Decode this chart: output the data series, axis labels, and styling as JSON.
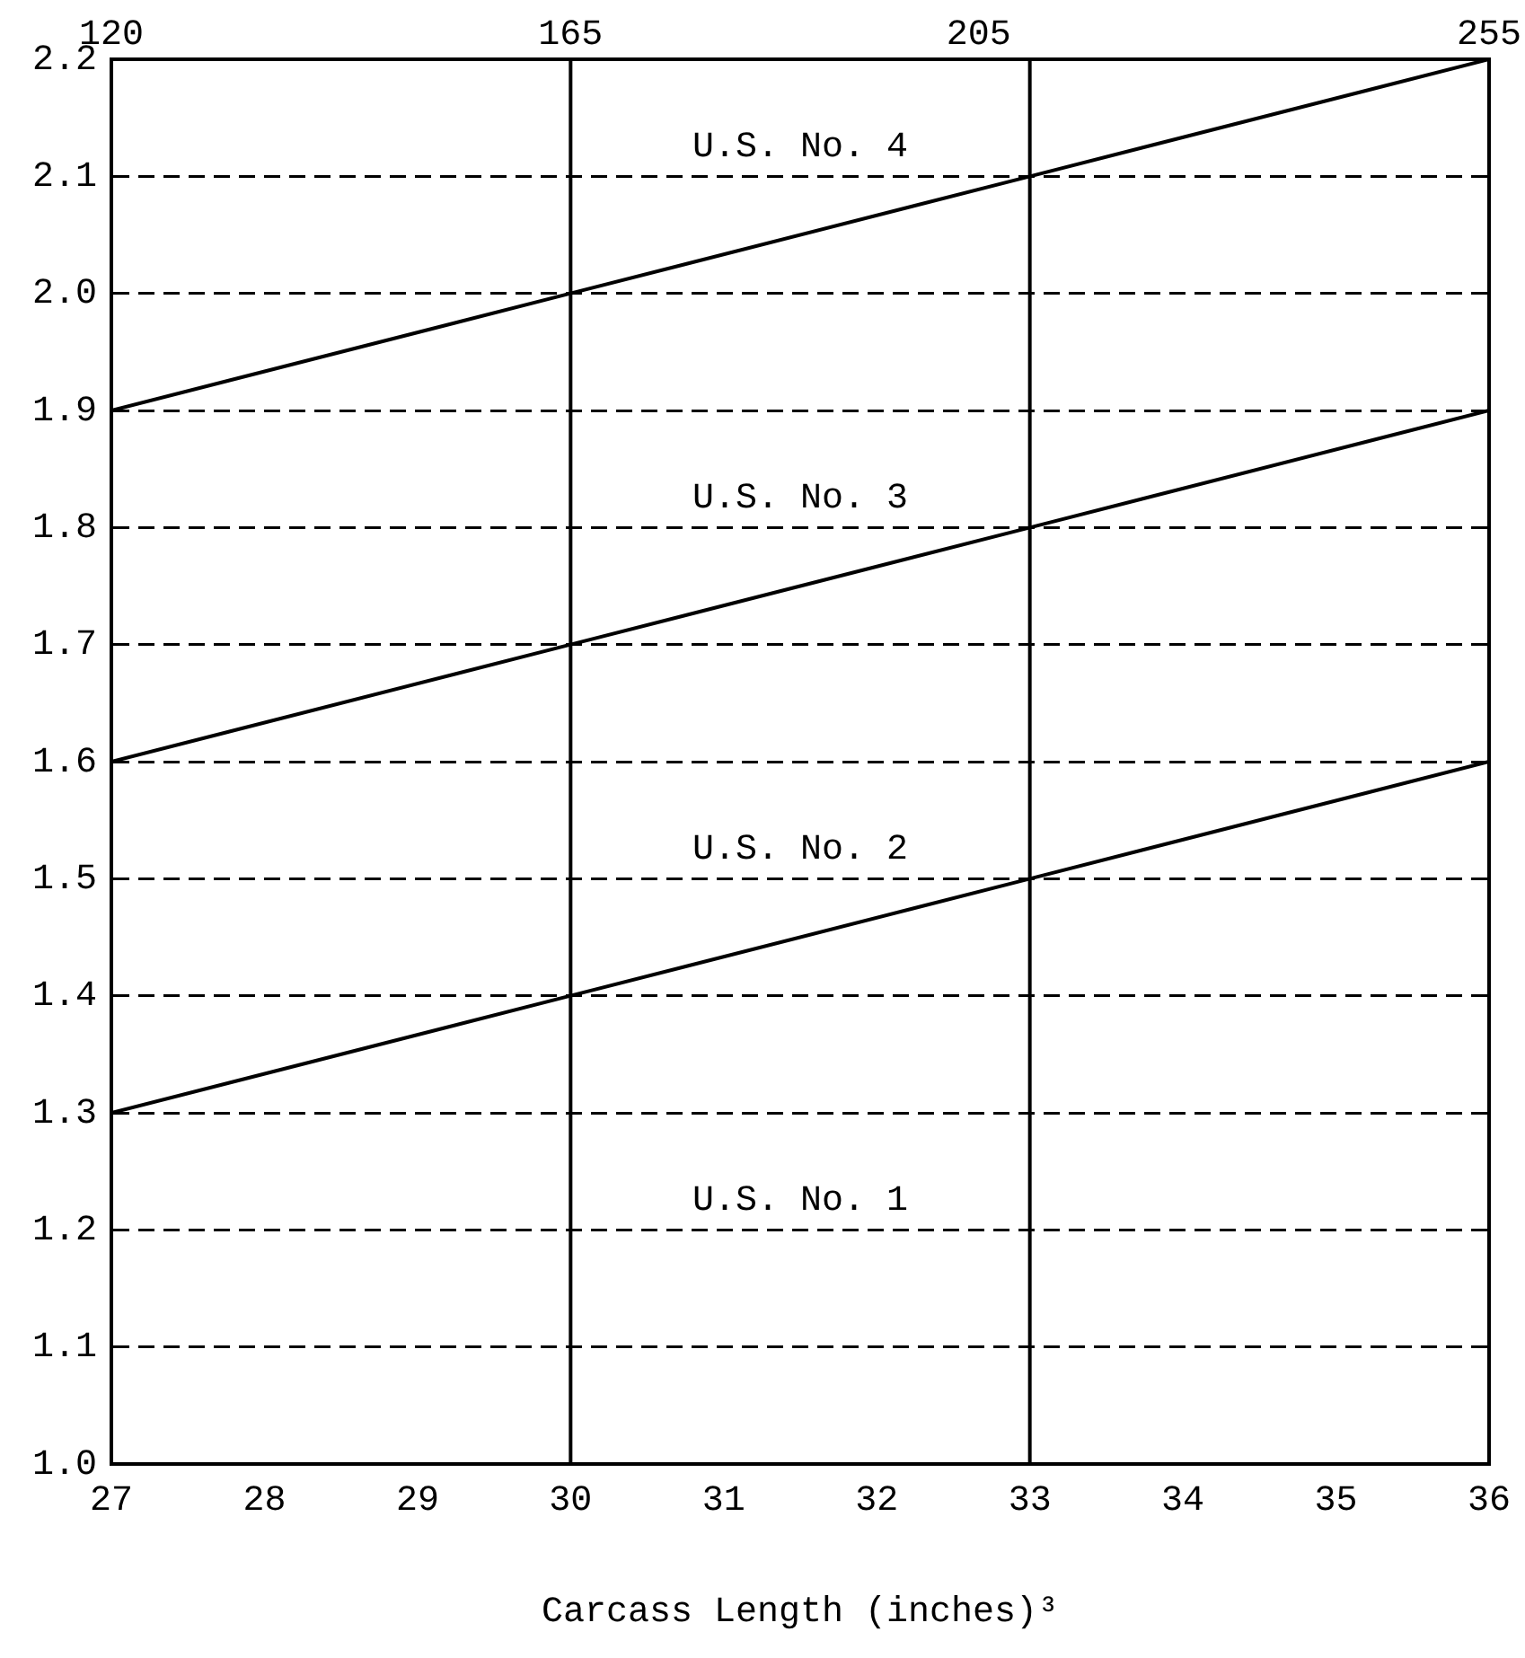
{
  "chart_data": {
    "type": "line",
    "xlabel": "Carcass Length (inches)³",
    "x": [
      27,
      30,
      33,
      36
    ],
    "series": [
      {
        "color": "#000000",
        "values": [
          1.3,
          1.4,
          1.5,
          1.6
        ]
      },
      {
        "color": "#000000",
        "values": [
          1.6,
          1.7,
          1.8,
          1.9
        ]
      },
      {
        "color": "#000000",
        "values": [
          1.9,
          2.0,
          2.1,
          2.2
        ]
      }
    ],
    "xlim": [
      27,
      36
    ],
    "xticks": [
      27,
      28,
      29,
      30,
      31,
      32,
      33,
      34,
      35,
      36
    ],
    "x2lim": [
      120,
      255
    ],
    "x2ticks": [
      120,
      165,
      205,
      255
    ],
    "ylim": [
      1.0,
      2.2
    ],
    "yticks": [
      {
        "value": 1.0,
        "label": "1.0"
      },
      {
        "value": 1.1,
        "label": "1.1"
      },
      {
        "value": 1.2,
        "label": "1.2"
      },
      {
        "value": 1.3,
        "label": "1.3"
      },
      {
        "value": 1.4,
        "label": "1.4"
      },
      {
        "value": 1.5,
        "label": "1.5"
      },
      {
        "value": 1.6,
        "label": "1.6"
      },
      {
        "value": 1.7,
        "label": "1.7"
      },
      {
        "value": 1.8,
        "label": "1.8"
      },
      {
        "value": 1.9,
        "label": "1.9"
      },
      {
        "value": 2.0,
        "label": "2.0"
      },
      {
        "value": 2.1,
        "label": "2.1"
      },
      {
        "value": 2.2,
        "label": "2.2"
      }
    ],
    "grid": "y",
    "marker": "none",
    "line_style": "solid",
    "legend": false,
    "ref_lines": [
      {
        "axis": "x",
        "value": 30
      },
      {
        "axis": "x",
        "value": 33
      }
    ],
    "annotations": [
      "U.S. No. 4",
      "U.S. No. 3",
      "U.S. No. 2",
      "U.S. No. 1"
    ]
  }
}
